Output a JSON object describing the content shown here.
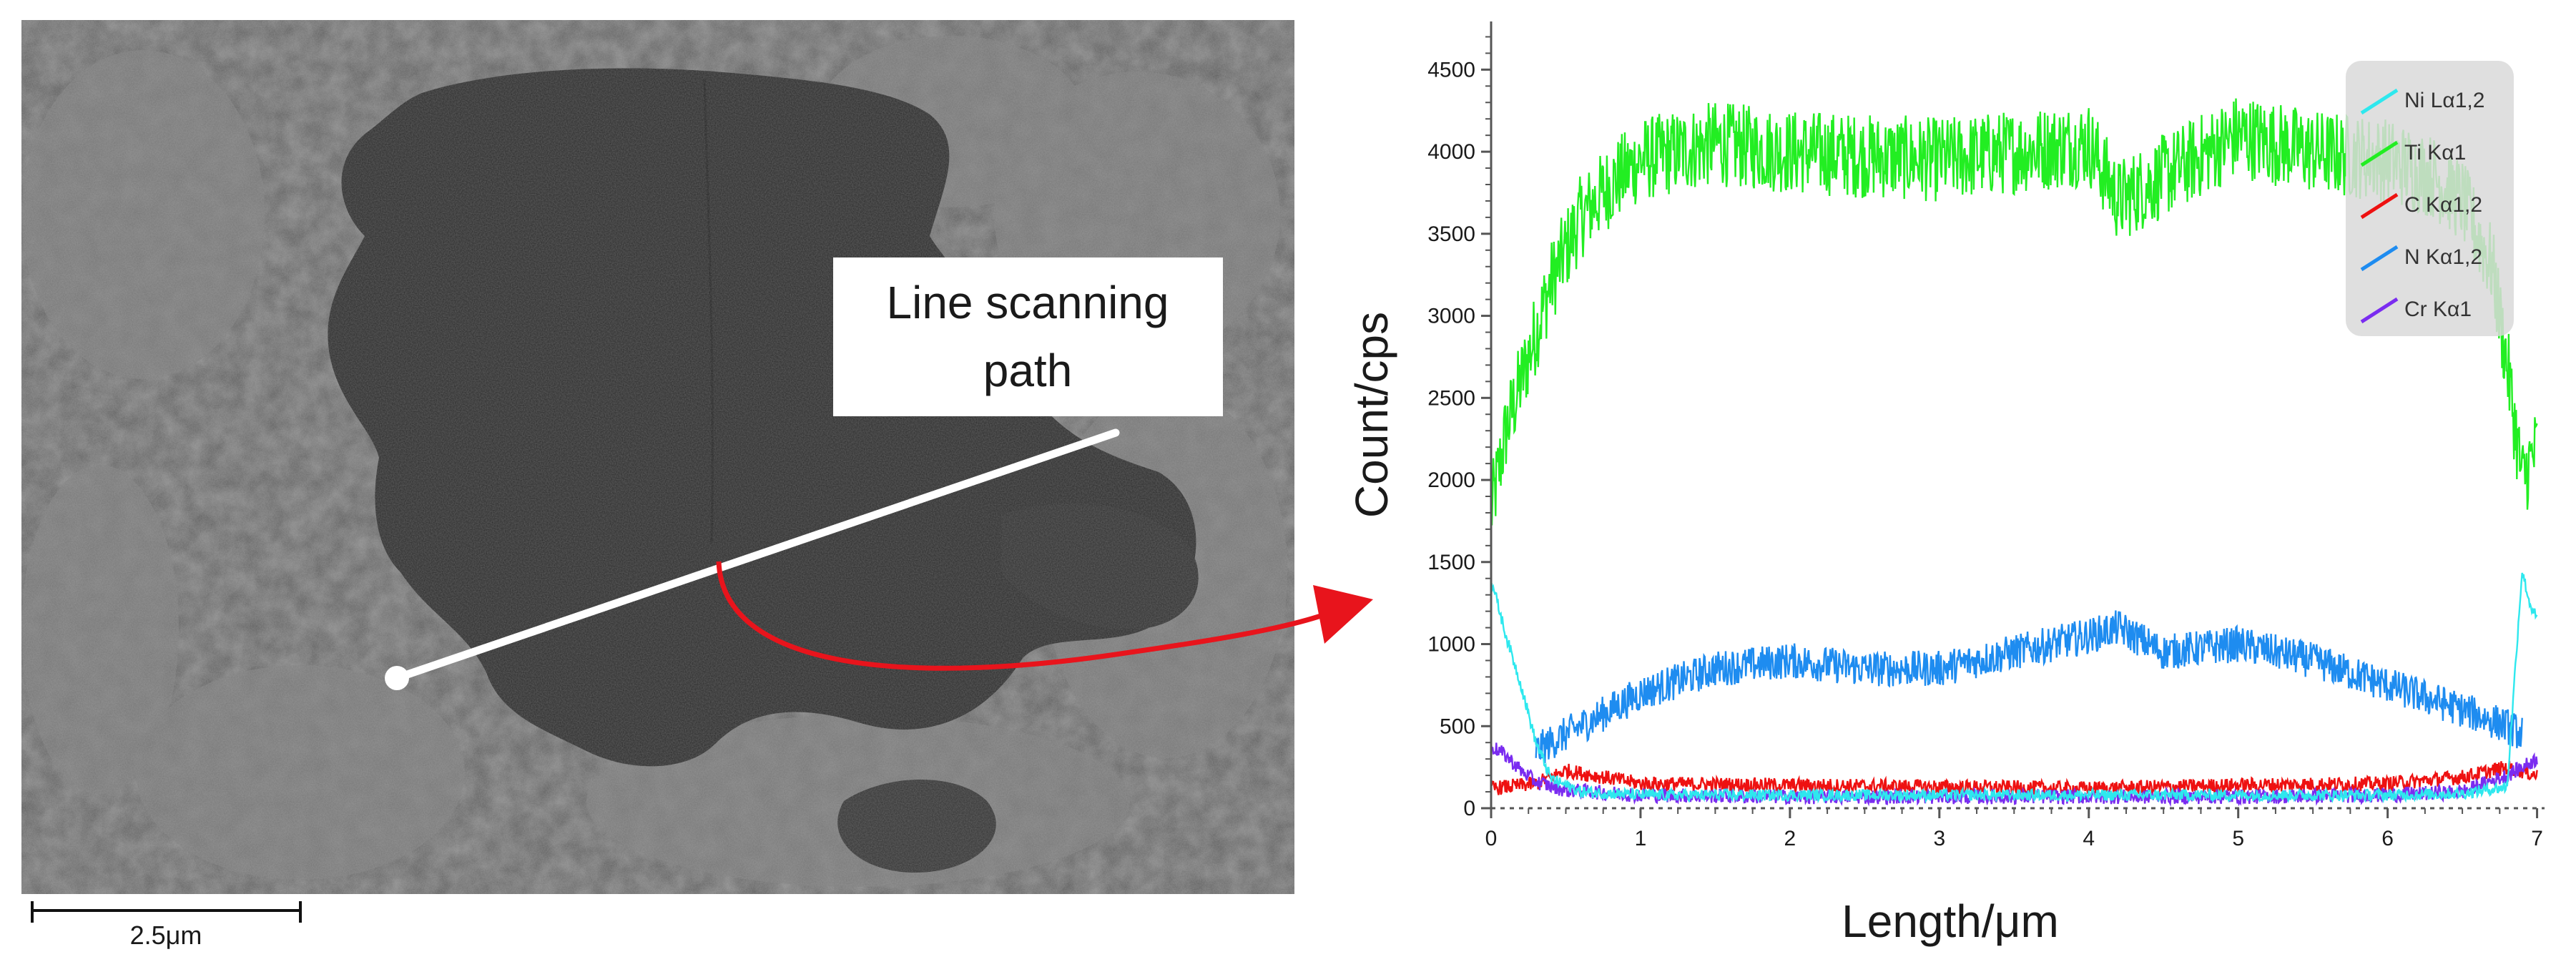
{
  "figure": {
    "micrograph": {
      "path_label_line1": "Line scanning",
      "path_label_line2": "path",
      "scale_bar_label": "2.5μm"
    }
  },
  "chart_data": {
    "type": "line",
    "xlabel": "Length/μm",
    "ylabel": "Count/cps",
    "xlim": [
      0,
      7.05
    ],
    "ylim": [
      0,
      4750
    ],
    "xticks": [
      0,
      1,
      2,
      3,
      4,
      5,
      6,
      7
    ],
    "yticks": [
      0,
      500,
      1000,
      1500,
      2000,
      2500,
      3000,
      3500,
      4000,
      4500
    ],
    "grid": false,
    "legend_position": "top-right",
    "series": [
      {
        "name": "Ni Lα1,2",
        "color": "#2ee8ee",
        "noise": 35,
        "x": [
          0,
          0.1,
          0.2,
          0.3,
          0.4,
          0.6,
          1.0,
          2.0,
          3.0,
          4.0,
          5.0,
          6.0,
          6.5,
          6.8,
          6.85,
          6.9,
          6.95,
          7.0
        ],
        "y": [
          1400,
          1050,
          750,
          400,
          180,
          100,
          80,
          80,
          80,
          80,
          80,
          80,
          90,
          130,
          800,
          1450,
          1250,
          1150
        ]
      },
      {
        "name": "Ti Kα1",
        "color": "#22ee22",
        "noise": 260,
        "x": [
          0,
          0.1,
          0.2,
          0.3,
          0.4,
          0.5,
          0.6,
          0.8,
          1.0,
          1.5,
          2.0,
          3.0,
          4.0,
          4.2,
          5.0,
          5.5,
          6.0,
          6.3,
          6.5,
          6.7,
          6.8,
          6.9,
          7.0
        ],
        "y": [
          1800,
          2300,
          2600,
          2900,
          3200,
          3400,
          3600,
          3800,
          3950,
          4050,
          4000,
          3950,
          4050,
          3700,
          4100,
          4000,
          3950,
          3850,
          3700,
          3300,
          2700,
          2000,
          2200
        ]
      },
      {
        "name": "C Kα1,2",
        "color": "#ee1111",
        "noise": 45,
        "x": [
          0,
          0.3,
          0.5,
          1.0,
          2.0,
          3.0,
          4.0,
          5.0,
          6.0,
          6.5,
          6.8,
          7.0
        ],
        "y": [
          120,
          150,
          230,
          150,
          140,
          130,
          120,
          140,
          150,
          190,
          250,
          200
        ]
      },
      {
        "name": "N Kα1,2",
        "color": "#1e8cf0",
        "noise": 110,
        "x": [
          0.3,
          0.5,
          0.8,
          1.0,
          1.5,
          2.0,
          2.5,
          3.0,
          3.5,
          4.0,
          4.2,
          4.5,
          5.0,
          5.5,
          6.0,
          6.5,
          6.8,
          6.9
        ],
        "y": [
          350,
          450,
          600,
          700,
          850,
          900,
          850,
          850,
          950,
          1050,
          1100,
          950,
          1000,
          900,
          750,
          600,
          500,
          450
        ]
      },
      {
        "name": "Cr Kα1",
        "color": "#7a2cf0",
        "noise": 45,
        "x": [
          0,
          0.1,
          0.2,
          0.3,
          0.5,
          1.0,
          2.0,
          3.0,
          4.0,
          5.0,
          6.0,
          6.5,
          6.8,
          7.0
        ],
        "y": [
          380,
          320,
          230,
          160,
          110,
          80,
          70,
          70,
          70,
          70,
          80,
          100,
          200,
          300
        ]
      }
    ]
  }
}
